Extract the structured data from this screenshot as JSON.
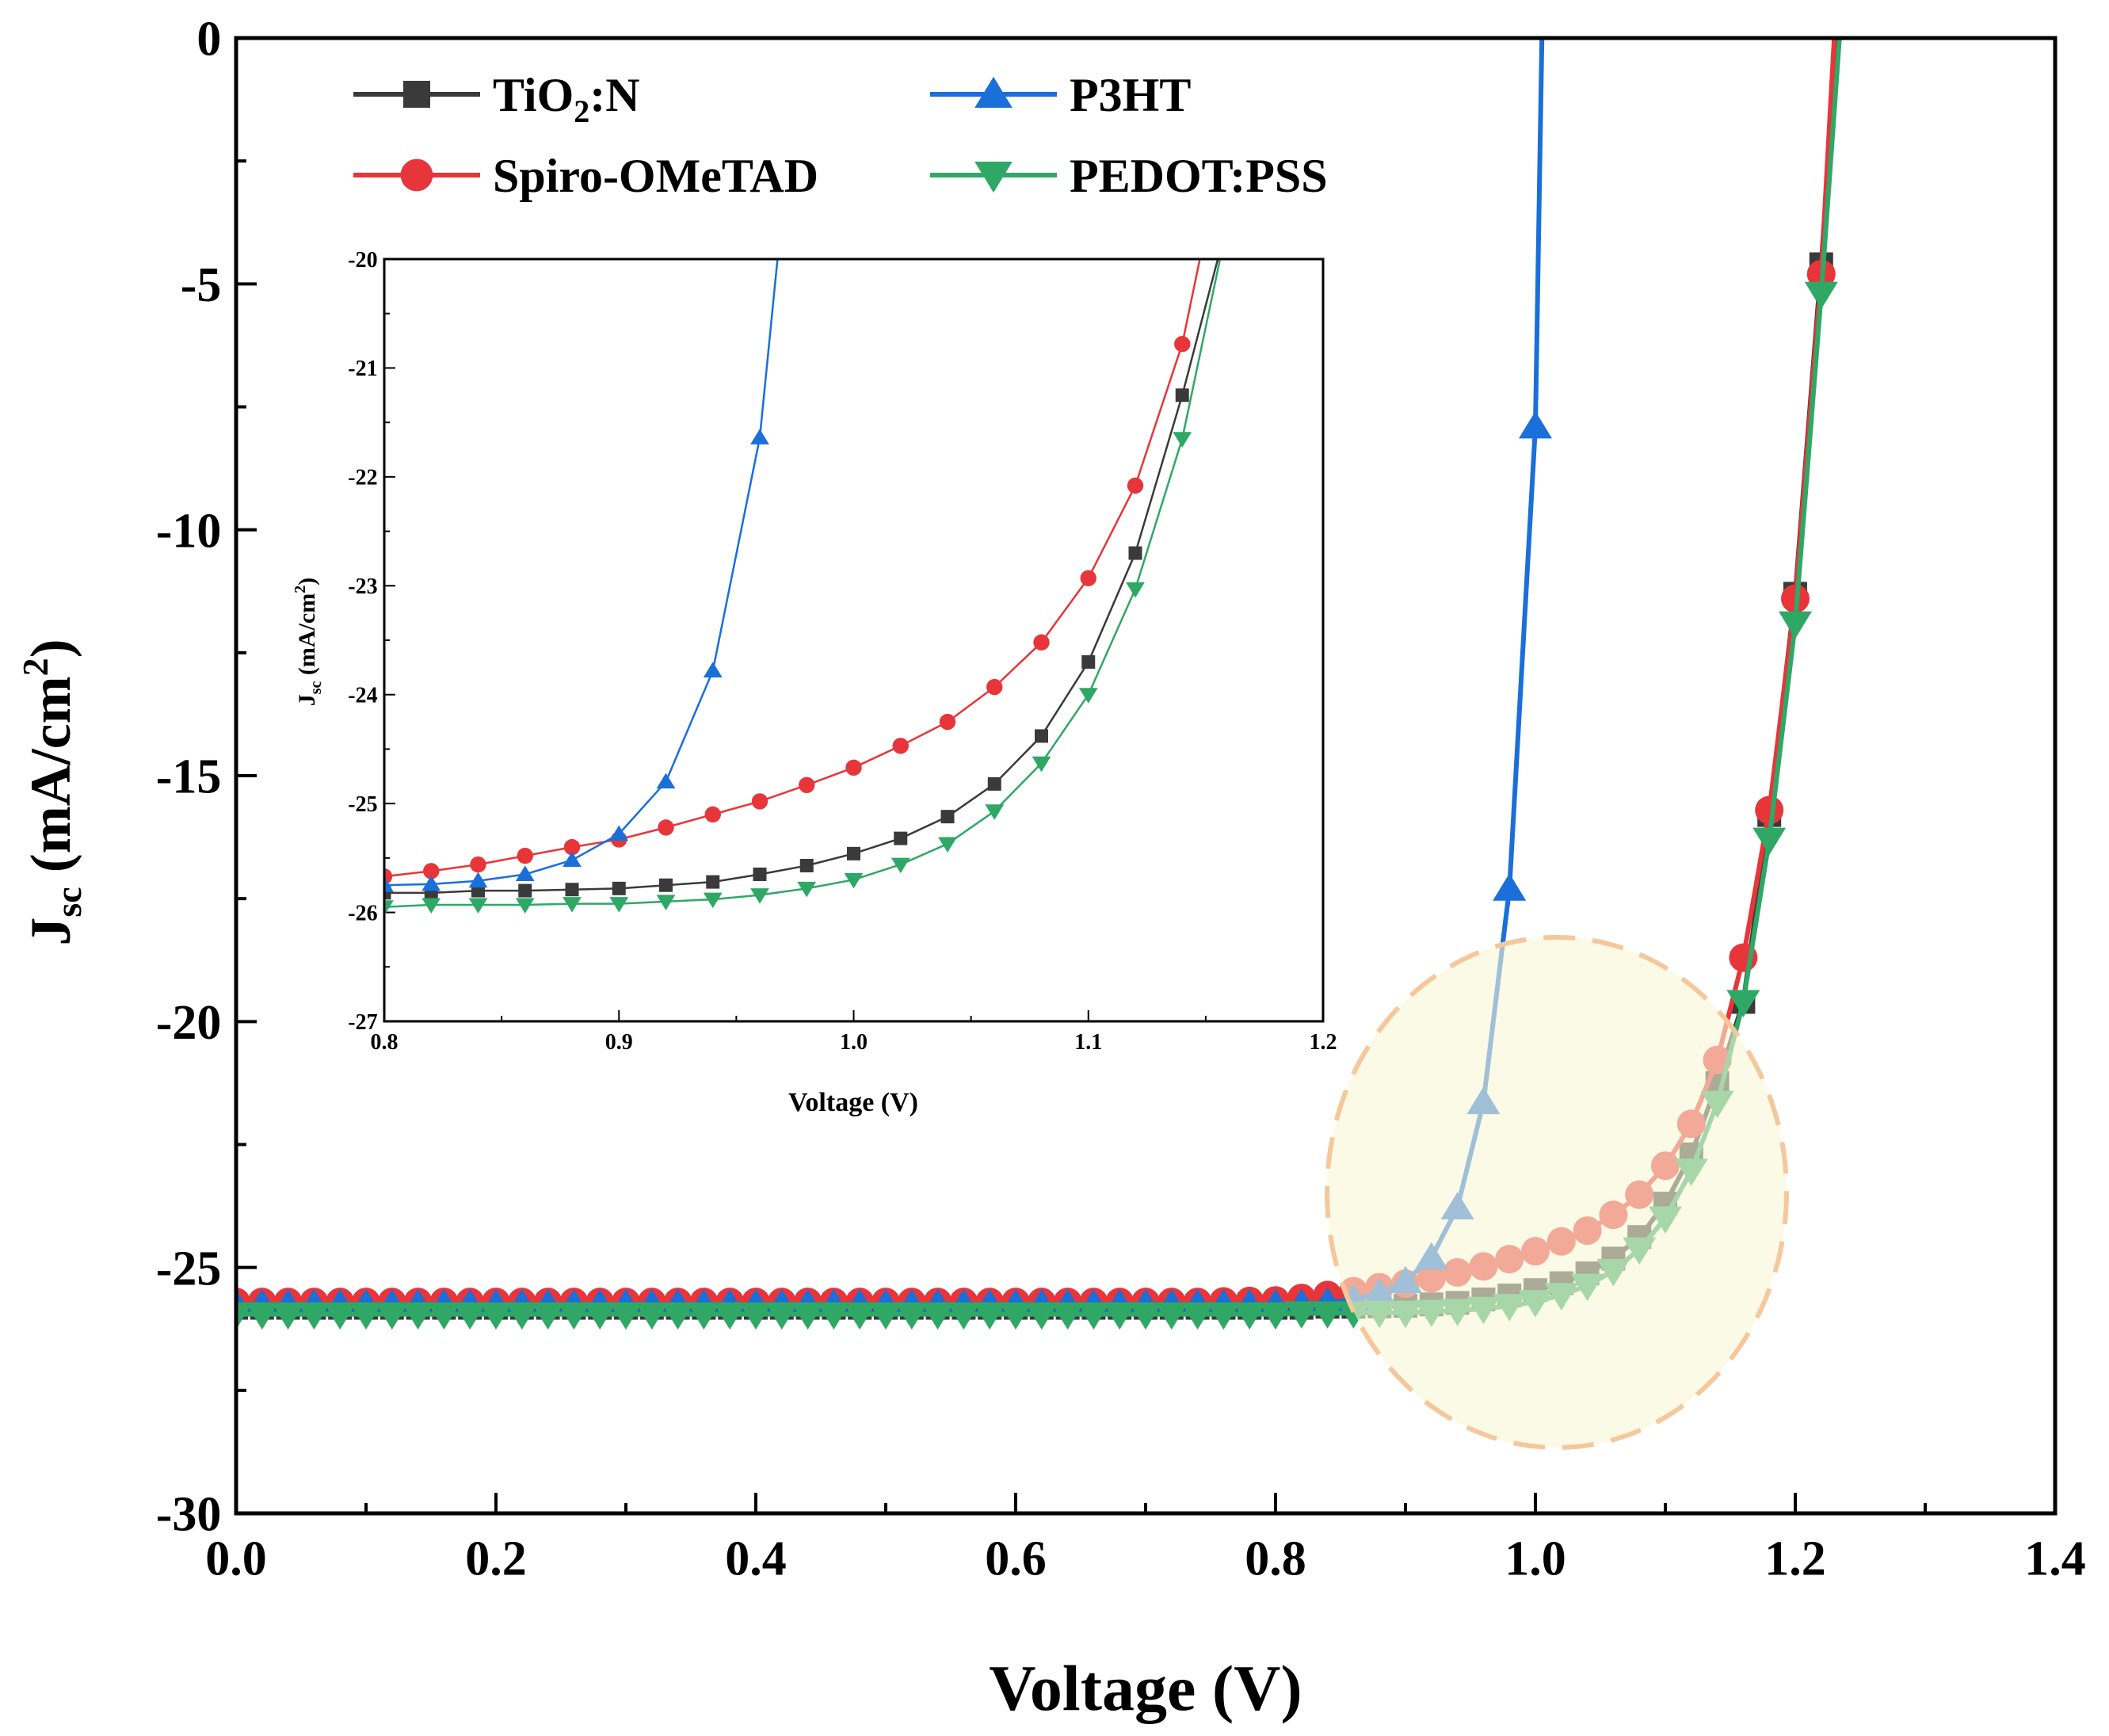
{
  "chart_data": {
    "type": "line",
    "xlabel": "Voltage (V)",
    "ylabel_main": "J",
    "ylabel_sub": "sc",
    "ylabel_rest": " (mA/cm",
    "ylabel_sup": "2",
    "ylabel_end": ")",
    "xlim": [
      0.0,
      1.4
    ],
    "ylim": [
      -30,
      0
    ],
    "xticks": [
      "0.0",
      "0.2",
      "0.4",
      "0.6",
      "0.8",
      "1.0",
      "1.2",
      "1.4"
    ],
    "yticks": [
      "0",
      "-5",
      "-10",
      "-15",
      "-20",
      "-25",
      "-30"
    ],
    "legend_position": "top-left",
    "legend": [
      {
        "label": "TiO",
        "sub": "2",
        "rest": ":N"
      },
      {
        "label": "P3HT",
        "sub": "",
        "rest": ""
      },
      {
        "label": "Spiro-OMeTAD",
        "sub": "",
        "rest": ""
      },
      {
        "label": "PEDOT:PSS",
        "sub": "",
        "rest": ""
      }
    ],
    "x": [
      0,
      0.02,
      0.04,
      0.06,
      0.08,
      0.1,
      0.12,
      0.14,
      0.16,
      0.18,
      0.2,
      0.22,
      0.24,
      0.26,
      0.28,
      0.3,
      0.32,
      0.34,
      0.36,
      0.38,
      0.4,
      0.42,
      0.44,
      0.46,
      0.48,
      0.5,
      0.52,
      0.54,
      0.56,
      0.58,
      0.6,
      0.62,
      0.64,
      0.66,
      0.68,
      0.7,
      0.72,
      0.74,
      0.76,
      0.78,
      0.8,
      0.82,
      0.84,
      0.86,
      0.88,
      0.9,
      0.92,
      0.94,
      0.96,
      0.98,
      1.0,
      1.02,
      1.04,
      1.06,
      1.08,
      1.1,
      1.12,
      1.14,
      1.16,
      1.18,
      1.2,
      1.22
    ],
    "series": [
      {
        "name": "TiO2:N",
        "color": "#3a3a3a",
        "marker": "square",
        "voc": 1.232,
        "y": [
          -25.82,
          -25.82,
          -25.82,
          -25.82,
          -25.82,
          -25.82,
          -25.82,
          -25.82,
          -25.82,
          -25.82,
          -25.82,
          -25.82,
          -25.82,
          -25.82,
          -25.82,
          -25.82,
          -25.82,
          -25.82,
          -25.82,
          -25.82,
          -25.82,
          -25.82,
          -25.82,
          -25.82,
          -25.82,
          -25.82,
          -25.82,
          -25.82,
          -25.82,
          -25.82,
          -25.82,
          -25.82,
          -25.82,
          -25.82,
          -25.82,
          -25.82,
          -25.82,
          -25.82,
          -25.82,
          -25.82,
          -25.82,
          -25.82,
          -25.8,
          -25.8,
          -25.79,
          -25.78,
          -25.75,
          -25.72,
          -25.65,
          -25.57,
          -25.46,
          -25.32,
          -25.12,
          -24.82,
          -24.38,
          -23.7,
          -22.7,
          -21.25,
          -19.6,
          -15.8,
          -11.3,
          -4.6
        ]
      },
      {
        "name": "Spiro-OMeTAD",
        "color": "#e8353a",
        "marker": "circle",
        "voc": 1.23,
        "y": [
          -25.7,
          -25.7,
          -25.7,
          -25.7,
          -25.7,
          -25.7,
          -25.7,
          -25.7,
          -25.7,
          -25.7,
          -25.7,
          -25.7,
          -25.7,
          -25.7,
          -25.7,
          -25.7,
          -25.7,
          -25.7,
          -25.7,
          -25.7,
          -25.7,
          -25.7,
          -25.7,
          -25.7,
          -25.7,
          -25.7,
          -25.7,
          -25.7,
          -25.7,
          -25.7,
          -25.7,
          -25.7,
          -25.7,
          -25.7,
          -25.7,
          -25.7,
          -25.7,
          -25.7,
          -25.69,
          -25.68,
          -25.67,
          -25.62,
          -25.56,
          -25.48,
          -25.4,
          -25.33,
          -25.22,
          -25.1,
          -24.98,
          -24.83,
          -24.67,
          -24.47,
          -24.25,
          -23.93,
          -23.52,
          -22.93,
          -22.08,
          -20.78,
          -18.7,
          -15.7,
          -11.4,
          -4.8
        ]
      },
      {
        "name": "P3HT",
        "color": "#1a6fd9",
        "marker": "triangle-up",
        "voc": 1.005,
        "y": [
          -25.75,
          -25.75,
          -25.75,
          -25.75,
          -25.75,
          -25.75,
          -25.75,
          -25.75,
          -25.75,
          -25.75,
          -25.75,
          -25.75,
          -25.75,
          -25.75,
          -25.75,
          -25.75,
          -25.75,
          -25.75,
          -25.75,
          -25.75,
          -25.75,
          -25.75,
          -25.75,
          -25.75,
          -25.75,
          -25.75,
          -25.75,
          -25.75,
          -25.75,
          -25.75,
          -25.75,
          -25.75,
          -25.75,
          -25.75,
          -25.75,
          -25.75,
          -25.75,
          -25.75,
          -25.75,
          -25.75,
          -25.75,
          -25.74,
          -25.71,
          -25.65,
          -25.52,
          -25.28,
          -24.8,
          -23.78,
          -21.64,
          -17.3,
          -7.9,
          null,
          null,
          null,
          null,
          null,
          null,
          null,
          null,
          null,
          null,
          null
        ]
      },
      {
        "name": "PEDOT:PSS",
        "color": "#2fa866",
        "marker": "triangle-down",
        "voc": 1.234,
        "y": [
          -25.95,
          -25.95,
          -25.95,
          -25.95,
          -25.95,
          -25.95,
          -25.95,
          -25.95,
          -25.95,
          -25.95,
          -25.95,
          -25.95,
          -25.95,
          -25.95,
          -25.95,
          -25.95,
          -25.95,
          -25.95,
          -25.95,
          -25.95,
          -25.95,
          -25.95,
          -25.95,
          -25.95,
          -25.95,
          -25.95,
          -25.95,
          -25.95,
          -25.95,
          -25.95,
          -25.95,
          -25.95,
          -25.95,
          -25.95,
          -25.95,
          -25.95,
          -25.95,
          -25.95,
          -25.95,
          -25.95,
          -25.95,
          -25.93,
          -25.93,
          -25.93,
          -25.92,
          -25.92,
          -25.9,
          -25.88,
          -25.84,
          -25.78,
          -25.7,
          -25.56,
          -25.37,
          -25.07,
          -24.63,
          -24.0,
          -23.03,
          -21.65,
          -19.6,
          -16.3,
          -11.9,
          -5.2
        ]
      }
    ],
    "inset": {
      "xlabel": "Voltage (V)",
      "xlim": [
        0.8,
        1.2
      ],
      "ylim": [
        -27,
        -20
      ],
      "xticks": [
        "0.8",
        "0.9",
        "1.0",
        "1.1",
        "1.2"
      ],
      "yticks": [
        "-20",
        "-21",
        "-22",
        "-23",
        "-24",
        "-25",
        "-26",
        "-27"
      ]
    },
    "highlight_color": "#f8f6d6",
    "highlight_border": "#f5c89c"
  }
}
